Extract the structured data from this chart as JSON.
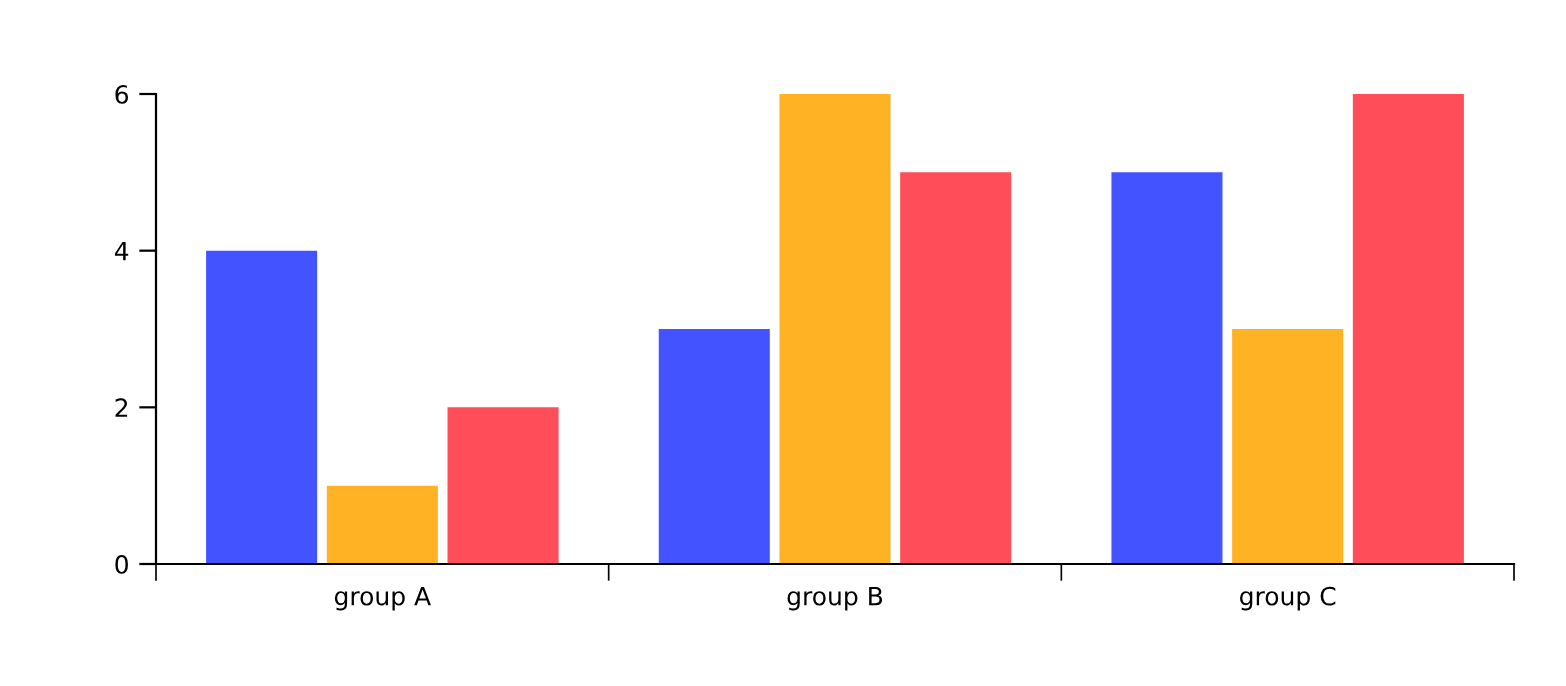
{
  "chart_data": {
    "type": "bar",
    "categories": [
      "group A",
      "group B",
      "group C"
    ],
    "series": [
      {
        "color": "#4353ff",
        "values": [
          4,
          3,
          5
        ]
      },
      {
        "color": "#ffb224",
        "values": [
          1,
          6,
          3
        ]
      },
      {
        "color": "#ff4d5a",
        "values": [
          2,
          5,
          6
        ]
      }
    ],
    "ylim": [
      0,
      6
    ],
    "yticks": [
      0,
      2,
      4,
      6
    ],
    "grid": false
  }
}
